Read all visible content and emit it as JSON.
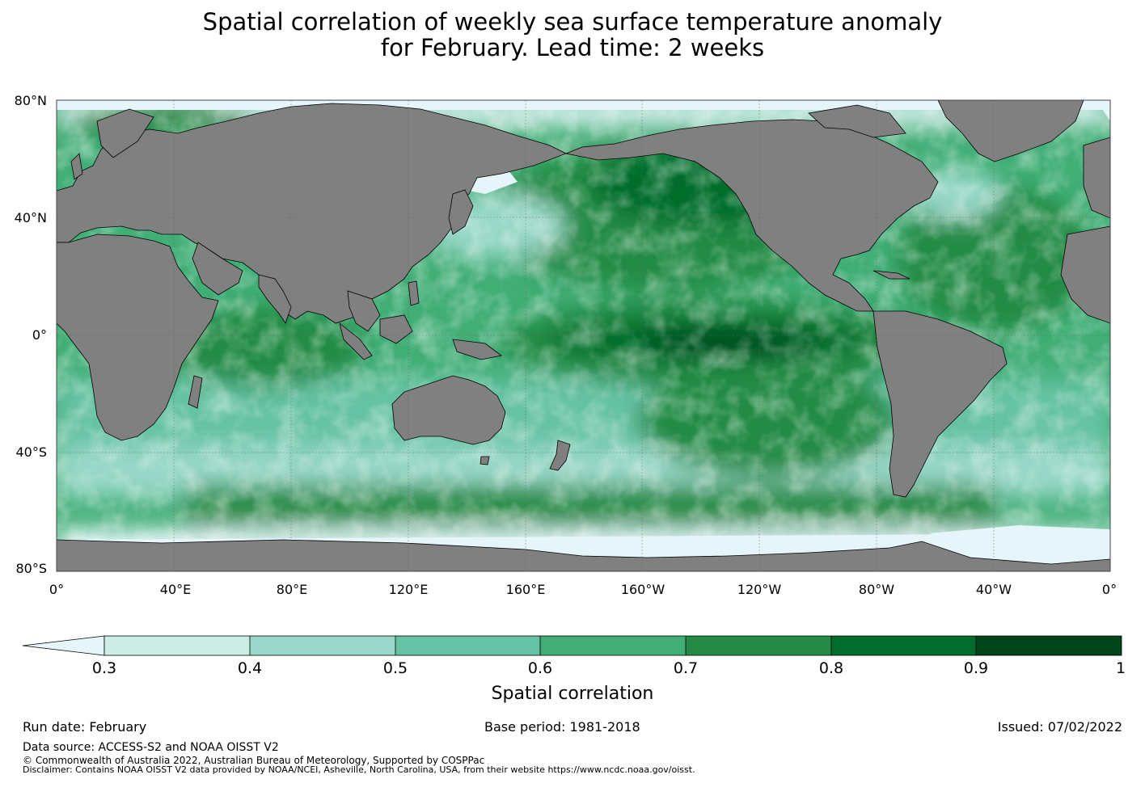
{
  "title": {
    "line1": "Spatial correlation of weekly sea surface temperature anomaly",
    "line2": "for February. Lead time: 2 weeks"
  },
  "map": {
    "lat_labels": [
      "80°N",
      "40°N",
      "0°",
      "40°S",
      "80°S"
    ],
    "lon_labels": [
      "0°",
      "40°E",
      "80°E",
      "120°E",
      "160°E",
      "160°W",
      "120°W",
      "80°W",
      "40°W",
      "0°"
    ],
    "colors": {
      "land": "#808080",
      "ice_low": "#e5f5f9",
      "ocean_levels": [
        "#ccece6",
        "#99d8c9",
        "#66c2a4",
        "#41ae76",
        "#238b45",
        "#006d2c",
        "#00441b"
      ]
    }
  },
  "colorbar": {
    "ticks": [
      "0.3",
      "0.4",
      "0.5",
      "0.6",
      "0.7",
      "0.8",
      "0.9",
      "1"
    ],
    "extend_color": "#e5f5f9",
    "colors": [
      "#ccece6",
      "#99d8c9",
      "#66c2a4",
      "#41ae76",
      "#238b45",
      "#006d2c",
      "#00441b"
    ],
    "label": "Spatial correlation"
  },
  "footer": {
    "run_date": "Run date: February",
    "base_period": "Base period: 1981-2018",
    "issued": "Issued: 07/02/2022",
    "data_source": "Data source: ACCESS-S2 and NOAA OISST V2",
    "copyright": "© Commonwealth of Australia 2022, Australian Bureau of Meteorology, Supported by COSPPac",
    "disclaimer": "Disclaimer: Contains NOAA OISST V2 data provided by NOAA/NCEI, Asheville, North Carolina, USA, from their website https://www.ncdc.noaa.gov/oisst."
  }
}
